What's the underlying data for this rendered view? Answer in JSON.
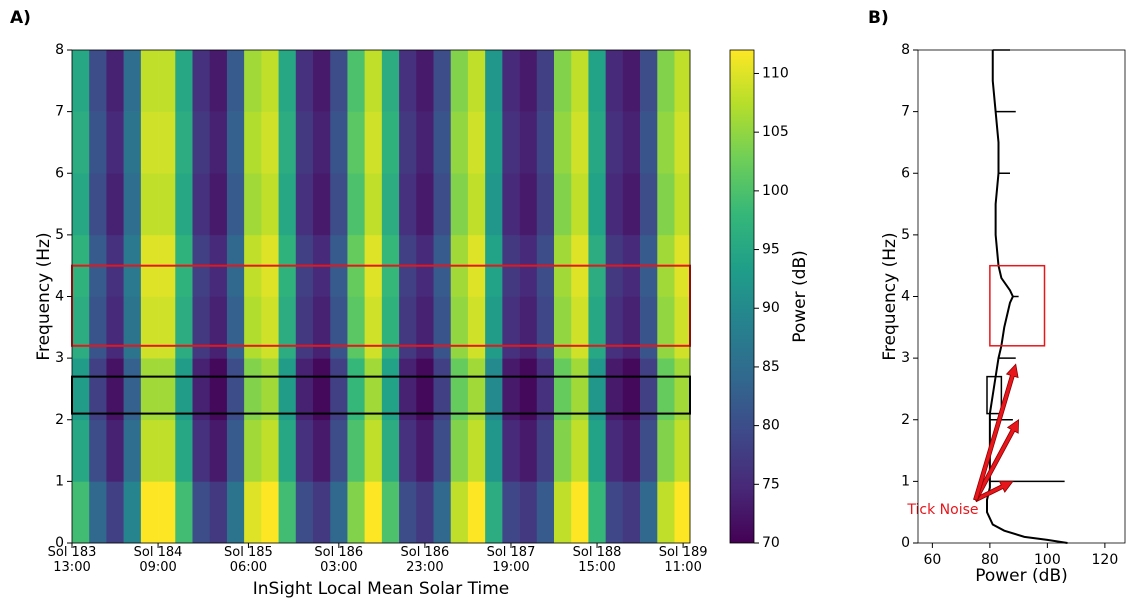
{
  "chart_data": [
    {
      "type": "heatmap",
      "panel_label": "A)",
      "xlabel": "InSight Local Mean Solar Time",
      "ylabel": "Frequency (Hz)",
      "x_bins": [
        0,
        4,
        8,
        12,
        16,
        20,
        24,
        28,
        32,
        36,
        40,
        44,
        48,
        52,
        56,
        60,
        64,
        68,
        72,
        76,
        80,
        84,
        88,
        92,
        96,
        100,
        104,
        108,
        112,
        116,
        120,
        124,
        128,
        132,
        136,
        140,
        143.6
      ],
      "y_bins": [
        0,
        1,
        2,
        3,
        4,
        5,
        6,
        7,
        8
      ],
      "values": [
        [
          99,
          84,
          78,
          89,
          112,
          112,
          99,
          80,
          77,
          86,
          110,
          112,
          99,
          80,
          77,
          84,
          104,
          112,
          100,
          80,
          77,
          84,
          108,
          112,
          96,
          79,
          77,
          82,
          108,
          112,
          98,
          79,
          77,
          84,
          108,
          112
        ],
        [
          95,
          80,
          74,
          85,
          108,
          108,
          95,
          76,
          73,
          82,
          106,
          108,
          95,
          76,
          73,
          80,
          100,
          108,
          96,
          76,
          73,
          80,
          104,
          108,
          92,
          75,
          73,
          78,
          104,
          108,
          94,
          75,
          73,
          80,
          104,
          108
        ],
        [
          93,
          78,
          72,
          83,
          106,
          106,
          93,
          74,
          71,
          80,
          104,
          106,
          93,
          74,
          71,
          78,
          98,
          106,
          94,
          74,
          71,
          78,
          102,
          106,
          90,
          73,
          71,
          76,
          102,
          106,
          92,
          73,
          71,
          78,
          102,
          106
        ],
        [
          96,
          81,
          75,
          86,
          109,
          109,
          96,
          77,
          74,
          83,
          107,
          109,
          96,
          77,
          74,
          81,
          101,
          109,
          97,
          77,
          74,
          81,
          105,
          109,
          93,
          76,
          74,
          79,
          105,
          109,
          95,
          76,
          74,
          81,
          105,
          109
        ],
        [
          97,
          82,
          76,
          87,
          110,
          110,
          97,
          78,
          75,
          84,
          108,
          110,
          97,
          78,
          75,
          82,
          102,
          110,
          98,
          78,
          75,
          82,
          106,
          110,
          94,
          77,
          75,
          80,
          106,
          110,
          96,
          77,
          75,
          82,
          106,
          110
        ],
        [
          95,
          80,
          74,
          85,
          108,
          108,
          95,
          76,
          73,
          82,
          106,
          108,
          95,
          76,
          73,
          80,
          100,
          108,
          96,
          76,
          73,
          80,
          104,
          108,
          92,
          75,
          73,
          78,
          104,
          108,
          94,
          75,
          73,
          80,
          104,
          108
        ],
        [
          96,
          81,
          75,
          86,
          109,
          109,
          96,
          77,
          74,
          83,
          107,
          109,
          96,
          77,
          74,
          81,
          101,
          109,
          97,
          77,
          74,
          81,
          105,
          109,
          93,
          76,
          74,
          79,
          105,
          109,
          95,
          76,
          74,
          81,
          105,
          109
        ],
        [
          95,
          80,
          74,
          85,
          108,
          108,
          95,
          76,
          73,
          82,
          106,
          108,
          95,
          76,
          73,
          80,
          100,
          108,
          96,
          76,
          73,
          80,
          104,
          108,
          92,
          75,
          73,
          78,
          104,
          108,
          94,
          75,
          73,
          80,
          104,
          108
        ]
      ],
      "colormap": "viridis",
      "clim": [
        70,
        112
      ],
      "colorbar_label": "Power (dB)",
      "colorbar_ticks": [
        70,
        75,
        80,
        85,
        90,
        95,
        100,
        105,
        110
      ],
      "xlim": [
        0,
        143.6
      ],
      "ylim": [
        0,
        8
      ],
      "xticks": [
        {
          "value": 0,
          "label": "Sol 183\n13:00"
        },
        {
          "value": 20,
          "label": "Sol 184\n09:00"
        },
        {
          "value": 41,
          "label": "Sol 185\n06:00"
        },
        {
          "value": 62,
          "label": "Sol 186\n03:00"
        },
        {
          "value": 82,
          "label": "Sol 186\n23:00"
        },
        {
          "value": 102,
          "label": "Sol 187\n19:00"
        },
        {
          "value": 122,
          "label": "Sol 188\n15:00"
        },
        {
          "value": 142,
          "label": "Sol 189\n11:00"
        }
      ],
      "yticks": [
        0,
        1,
        2,
        3,
        4,
        5,
        6,
        7,
        8
      ],
      "boxes": [
        {
          "ylim": [
            3.2,
            4.5
          ],
          "color": "#e8161b"
        },
        {
          "ylim": [
            2.1,
            2.7
          ],
          "color": "#000000"
        }
      ]
    },
    {
      "type": "line",
      "panel_label": "B)",
      "xlabel": "Power (dB)",
      "ylabel": "Frequency (Hz)",
      "frequencies": [
        0,
        0.05,
        0.1,
        0.2,
        0.3,
        0.5,
        0.7,
        0.9,
        1.0,
        1.5,
        2.0,
        2.1,
        2.4,
        2.7,
        3.0,
        3.2,
        3.5,
        3.7,
        3.9,
        4.0,
        4.1,
        4.3,
        4.5,
        5.0,
        5.5,
        6.0,
        6.5,
        7.0,
        7.5,
        8.0
      ],
      "values": [
        107,
        100,
        92,
        85,
        81,
        79,
        79,
        80,
        80,
        80,
        80,
        80,
        81,
        82,
        83,
        84,
        85,
        86,
        87,
        88,
        87,
        84,
        83,
        82,
        82,
        83,
        83,
        82,
        81,
        81
      ],
      "color": "#000000",
      "xlim": [
        55,
        127
      ],
      "ylim": [
        0,
        8
      ],
      "xticks": [
        60,
        80,
        100,
        120
      ],
      "yticks": [
        0,
        1,
        2,
        3,
        4,
        5,
        6,
        7,
        8
      ],
      "tick_noise": {
        "frequencies": [
          1,
          2,
          3,
          4,
          6,
          7,
          8
        ],
        "values": [
          106,
          88,
          89,
          90,
          87,
          89,
          87
        ]
      },
      "boxes": [
        {
          "xlim": [
            80,
            99
          ],
          "ylim": [
            3.2,
            4.5
          ],
          "color": "#e8161b"
        },
        {
          "xlim": [
            79,
            84
          ],
          "ylim": [
            2.1,
            2.7
          ],
          "color": "#000000"
        }
      ],
      "annotation": {
        "text": "Tick Noise",
        "color": "#e8161b",
        "tail": [
          75,
          0.7
        ],
        "heads": [
          [
            88,
            1.0
          ],
          [
            90,
            2.0
          ],
          [
            89,
            2.9
          ]
        ]
      }
    }
  ]
}
